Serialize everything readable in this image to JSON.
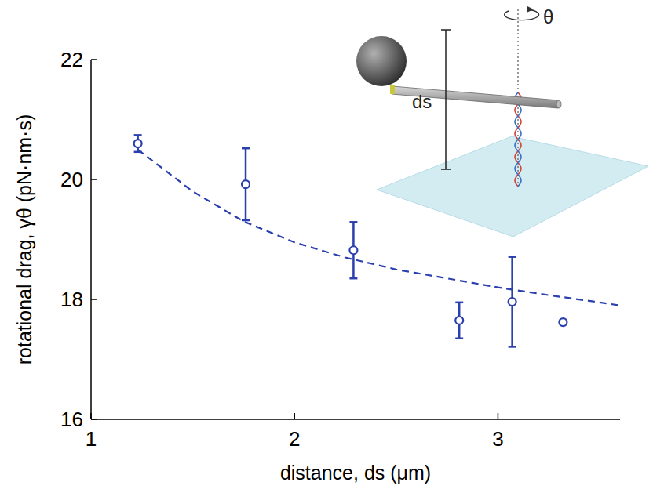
{
  "chart_data": {
    "type": "scatter",
    "x_label": "distance, ds (μm)",
    "y_label": "rotational drag, γθ (pN·nm·s)",
    "xlim": [
      1,
      3.6
    ],
    "xticks": [
      1,
      2,
      3
    ],
    "ylim": [
      16,
      22
    ],
    "yticks": [
      16,
      18,
      20,
      22
    ],
    "grid": false,
    "annotations": [
      "θ",
      "ds"
    ],
    "series": [
      {
        "type": "scatter",
        "color": "#2b3fae",
        "marker": "circle",
        "x": [
          1.23,
          1.76,
          2.29,
          2.81,
          3.07,
          3.32
        ],
        "values": [
          20.6,
          19.92,
          18.82,
          17.65,
          17.96,
          17.62
        ],
        "errors": [
          0.14,
          0.6,
          0.47,
          0.3,
          0.75,
          0.03
        ]
      },
      {
        "type": "line",
        "color": "#2b3fae",
        "line_style": "dashed",
        "x": [
          1.23,
          1.5,
          1.75,
          2.0,
          2.25,
          2.5,
          2.75,
          3.0,
          3.25,
          3.5,
          3.6
        ],
        "values": [
          20.5,
          19.8,
          19.3,
          18.95,
          18.7,
          18.5,
          18.35,
          18.2,
          18.07,
          17.95,
          17.9
        ]
      }
    ]
  }
}
